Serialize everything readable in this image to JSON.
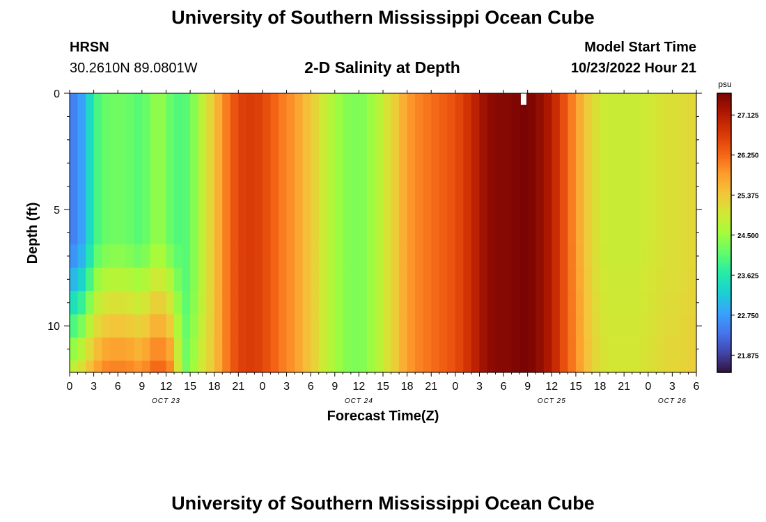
{
  "header": {
    "title": "University of Southern Mississippi Ocean Cube",
    "station": "HRSN",
    "coords": "30.2610N  89.0801W",
    "plot_title": "2-D Salinity at Depth",
    "model_start_label": "Model Start Time",
    "model_start_value": "10/23/2022 Hour 21"
  },
  "footer": {
    "title": "University of Southern Mississippi Ocean Cube"
  },
  "colors": {
    "colormap": [
      "#30123b",
      "#4145ab",
      "#4675ed",
      "#39a2fc",
      "#1bcfd4",
      "#24eca6",
      "#61fc6c",
      "#a4fc3b",
      "#d1e834",
      "#f3c63a",
      "#fe9b2d",
      "#f36315",
      "#d93806",
      "#b11901",
      "#7a0403"
    ]
  },
  "chart_data": {
    "type": "heatmap",
    "title": "2-D Salinity at Depth",
    "xlabel": "Forecast Time(Z)",
    "ylabel": "Depth (ft)",
    "x_hour_range": [
      0,
      78
    ],
    "ylim": [
      0,
      12
    ],
    "x_ticks": [
      "0",
      "3",
      "6",
      "9",
      "12",
      "15",
      "18",
      "21",
      "0",
      "3",
      "6",
      "9",
      "12",
      "15",
      "18",
      "21",
      "0",
      "3",
      "6",
      "9",
      "12",
      "15",
      "18",
      "21",
      "0",
      "3",
      "6"
    ],
    "date_labels": [
      {
        "text": "OCT 23",
        "hour": 12
      },
      {
        "text": "OCT 24",
        "hour": 36
      },
      {
        "text": "OCT 25",
        "hour": 60
      },
      {
        "text": "OCT 26",
        "hour": 75
      }
    ],
    "y_ticks": [
      "0",
      "5",
      "10"
    ],
    "y_tick_values": [
      0,
      5,
      10
    ],
    "colorbar": {
      "unit": "psu",
      "min": 21.5,
      "max": 27.6,
      "tick_values": [
        27.125,
        26.25,
        25.375,
        24.5,
        23.625,
        22.75,
        21.875
      ],
      "tick_labels": [
        "27.125",
        "26.250",
        "25.375",
        "24.500",
        "23.625",
        "22.750",
        "21.875"
      ]
    },
    "depth_bins": [
      0,
      6.5,
      7.5,
      8.5,
      9.5,
      10.5,
      11.5,
      12
    ],
    "surface_salinity": [
      22.4,
      22.6,
      23.0,
      23.8,
      24.1,
      24.2,
      24.2,
      24.2,
      24.1,
      24.0,
      24.3,
      24.5,
      24.3,
      24.0,
      24.0,
      24.1,
      24.6,
      25.0,
      25.4,
      25.9,
      26.3,
      26.6,
      26.7,
      26.7,
      26.6,
      26.4,
      26.2,
      26.0,
      25.9,
      25.6,
      25.4,
      25.1,
      24.8,
      24.6,
      24.4,
      24.3,
      24.3,
      24.4,
      24.6,
      24.9,
      25.2,
      25.5,
      25.8,
      26.0,
      26.1,
      26.2,
      26.3,
      26.4,
      26.5,
      26.7,
      26.9,
      27.2,
      27.4,
      27.5,
      27.5,
      27.5,
      27.6,
      27.6,
      27.5,
      27.3,
      27.1,
      26.7,
      26.3,
      25.9,
      25.5,
      25.2,
      25.0,
      24.9,
      24.9,
      24.9,
      24.9,
      24.9,
      25.0,
      25.0,
      25.1,
      25.1,
      25.1,
      25.2,
      25.2
    ],
    "missing_cell": {
      "hour": 56.5,
      "depth_range": [
        0,
        0.5
      ]
    }
  }
}
